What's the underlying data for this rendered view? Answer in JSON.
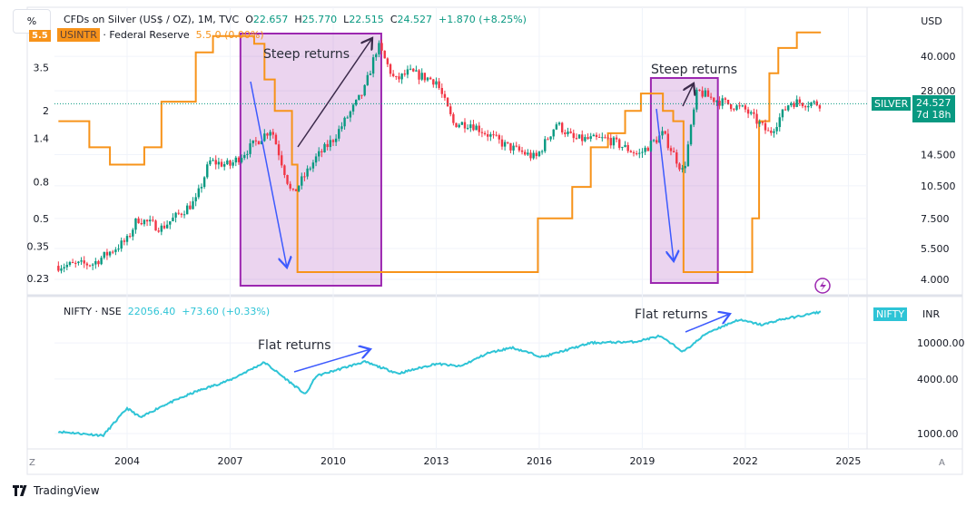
{
  "header": {
    "scale_button": "%",
    "currency_button": "USD"
  },
  "silver_legend": {
    "title": "CFDs on Silver (US$ / OZ), 1M, TVC",
    "o_label": "O",
    "o": "22.657",
    "h_label": "H",
    "h": "25.770",
    "l_label": "L",
    "l": "22.515",
    "c_label": "C",
    "c": "24.527",
    "change": "+1.870 (+8.25%)"
  },
  "usintr_legend": {
    "symbol": "USINTR",
    "name": "· Federal Reserve",
    "value": "5.5  0 (0.00%)",
    "axis_tag": "5.5"
  },
  "nifty_legend": {
    "title": "NIFTY · NSE",
    "value": "22056.40",
    "change": "+73.60 (+0.33%)",
    "tag": "NIFTY",
    "currency": "INR"
  },
  "silver_tag": {
    "symbol": "SILVER",
    "price": "24.527",
    "countdown": "7d 18h"
  },
  "annotations": {
    "steep1": "Steep returns",
    "steep2": "Steep returns",
    "flat1": "Flat returns",
    "flat2": "Flat returns"
  },
  "bottom": {
    "left_button": "Z",
    "right_button": "A"
  },
  "footer": {
    "brand": "TradingView"
  },
  "chart_data": [
    {
      "type": "candlestick",
      "name": "CFDs on Silver (US$ / OZ)",
      "interval": "1M",
      "scale": "log",
      "axis": "right",
      "yticks": [
        "40.000",
        "28.000",
        "14.500",
        "10.500",
        "7.500",
        "5.500",
        "4.000"
      ],
      "ytick_values": [
        40,
        28,
        14.5,
        10.5,
        7.5,
        5.5,
        4
      ],
      "colors": {
        "up": "#089981",
        "down": "#f23645"
      },
      "points": [
        [
          2002.0,
          4.6
        ],
        [
          2003.0,
          4.7
        ],
        [
          2004.0,
          6.0
        ],
        [
          2004.3,
          7.5
        ],
        [
          2005.0,
          6.8
        ],
        [
          2006.0,
          9.0
        ],
        [
          2006.4,
          13.5
        ],
        [
          2007.0,
          13.0
        ],
        [
          2008.2,
          19.0
        ],
        [
          2008.8,
          9.5
        ],
        [
          2009.5,
          14.0
        ],
        [
          2010.0,
          17.0
        ],
        [
          2010.9,
          28.0
        ],
        [
          2011.3,
          45.0
        ],
        [
          2011.8,
          31.0
        ],
        [
          2012.2,
          34.0
        ],
        [
          2013.0,
          31.0
        ],
        [
          2013.5,
          20.0
        ],
        [
          2014.0,
          20.0
        ],
        [
          2015.0,
          16.0
        ],
        [
          2015.9,
          14.0
        ],
        [
          2016.5,
          20.0
        ],
        [
          2017.0,
          17.0
        ],
        [
          2018.0,
          17.0
        ],
        [
          2018.9,
          14.5
        ],
        [
          2019.6,
          18.0
        ],
        [
          2020.2,
          12.0
        ],
        [
          2020.6,
          28.0
        ],
        [
          2021.0,
          26.0
        ],
        [
          2022.0,
          23.0
        ],
        [
          2022.7,
          18.0
        ],
        [
          2023.3,
          25.0
        ],
        [
          2024.2,
          24.527
        ]
      ]
    },
    {
      "type": "step-line",
      "name": "USINTR · Federal Reserve",
      "scale": "log",
      "axis": "left",
      "color": "#f7931a",
      "yticks": [
        "3.5",
        "2",
        "1.4",
        "0.8",
        "0.5",
        "0.35",
        "0.23"
      ],
      "ytick_values": [
        3.5,
        2,
        1.4,
        0.8,
        0.5,
        0.35,
        0.23
      ],
      "points": [
        [
          2002.0,
          1.75
        ],
        [
          2002.9,
          1.25
        ],
        [
          2003.5,
          1.0
        ],
        [
          2004.5,
          1.25
        ],
        [
          2005.0,
          2.25
        ],
        [
          2006.0,
          4.25
        ],
        [
          2006.5,
          5.25
        ],
        [
          2007.7,
          4.75
        ],
        [
          2008.0,
          3.0
        ],
        [
          2008.3,
          2.0
        ],
        [
          2008.8,
          1.0
        ],
        [
          2008.96,
          0.25
        ],
        [
          2015.96,
          0.5
        ],
        [
          2016.96,
          0.75
        ],
        [
          2017.5,
          1.25
        ],
        [
          2018.0,
          1.5
        ],
        [
          2018.5,
          2.0
        ],
        [
          2018.96,
          2.5
        ],
        [
          2019.6,
          2.0
        ],
        [
          2019.9,
          1.75
        ],
        [
          2020.2,
          0.25
        ],
        [
          2022.2,
          0.5
        ],
        [
          2022.4,
          1.75
        ],
        [
          2022.7,
          3.25
        ],
        [
          2022.96,
          4.5
        ],
        [
          2023.5,
          5.5
        ],
        [
          2024.2,
          5.5
        ]
      ]
    },
    {
      "type": "line",
      "name": "NIFTY · NSE",
      "scale": "log",
      "axis": "right",
      "color": "#2ec4d6",
      "yticks": [
        "10000.00",
        "4000.00",
        "1000.00"
      ],
      "ytick_values": [
        10000,
        4000,
        1000
      ],
      "points": [
        [
          2002.0,
          1050
        ],
        [
          2003.3,
          950
        ],
        [
          2004.0,
          1900
        ],
        [
          2004.4,
          1500
        ],
        [
          2005.0,
          2000
        ],
        [
          2006.0,
          2900
        ],
        [
          2007.0,
          3900
        ],
        [
          2008.0,
          6100
        ],
        [
          2009.2,
          2700
        ],
        [
          2009.5,
          4300
        ],
        [
          2010.9,
          6200
        ],
        [
          2011.9,
          4600
        ],
        [
          2013.0,
          5900
        ],
        [
          2013.7,
          5500
        ],
        [
          2014.5,
          7700
        ],
        [
          2015.2,
          8900
        ],
        [
          2016.1,
          7000
        ],
        [
          2017.5,
          10000
        ],
        [
          2018.8,
          10300
        ],
        [
          2019.5,
          11900
        ],
        [
          2020.2,
          8000
        ],
        [
          2020.9,
          13000
        ],
        [
          2021.8,
          18000
        ],
        [
          2022.5,
          15800
        ],
        [
          2023.0,
          18000
        ],
        [
          2023.6,
          19800
        ],
        [
          2024.2,
          22056.4
        ]
      ]
    }
  ],
  "xaxis": {
    "ticks": [
      "2004",
      "2007",
      "2010",
      "2013",
      "2016",
      "2019",
      "2022",
      "2025"
    ],
    "tick_values": [
      2004,
      2007,
      2010,
      2013,
      2016,
      2019,
      2022,
      2025
    ]
  },
  "highlight_periods": [
    {
      "from": 2007.3,
      "to": 2011.4
    },
    {
      "from": 2019.25,
      "to": 2021.2
    }
  ],
  "highlight_color": "#9c27b0"
}
